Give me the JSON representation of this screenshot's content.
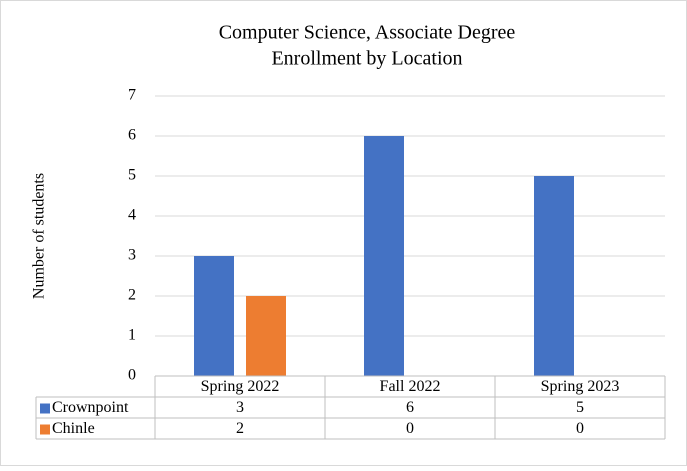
{
  "chart_data": {
    "type": "bar",
    "title": [
      "Computer Science, Associate Degree",
      "Enrollment by Location"
    ],
    "y_label": "Number of students",
    "categories": [
      "Spring 2022",
      "Fall 2022",
      "Spring 2023"
    ],
    "series": [
      {
        "name": "Crownpoint",
        "color": "#4472c4",
        "values": [
          3,
          6,
          5
        ]
      },
      {
        "name": "Chinle",
        "color": "#ed7d31",
        "values": [
          2,
          0,
          0
        ]
      }
    ],
    "ylim": [
      0,
      7
    ],
    "yticks": [
      0,
      1,
      2,
      3,
      4,
      5,
      6,
      7
    ],
    "grid": true,
    "data_table": true
  }
}
